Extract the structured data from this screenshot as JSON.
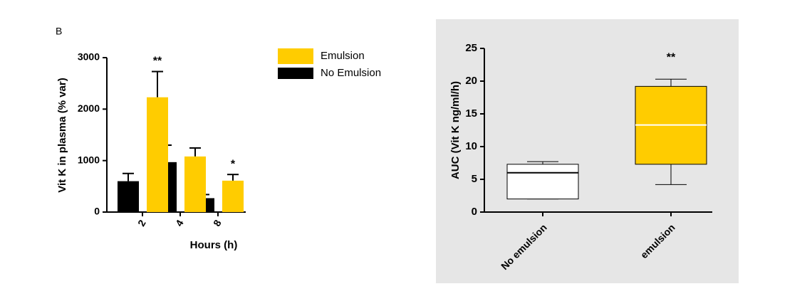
{
  "chart_data": [
    {
      "type": "bar",
      "panel_label": "B",
      "xlabel": "Hours (h)",
      "ylabel": "Vit K in plasma (% var)",
      "categories": [
        "2",
        "4",
        "8"
      ],
      "series": [
        {
          "name": "No Emulsion",
          "color": "#000000",
          "values": [
            600,
            970,
            270
          ],
          "errors": [
            150,
            330,
            70
          ]
        },
        {
          "name": "Emulsion",
          "color": "#ffcc00",
          "values": [
            2230,
            1080,
            610
          ],
          "errors": [
            500,
            165,
            120
          ]
        }
      ],
      "annotations": [
        {
          "text": "**",
          "x": "2"
        },
        {
          "text": "*",
          "x": "8"
        }
      ],
      "ylim": [
        0,
        3000
      ],
      "yticks": [
        0,
        1000,
        2000,
        3000
      ],
      "legend": "upper right"
    },
    {
      "type": "box",
      "ylabel": "AUC (Vit K ng/ml/h)",
      "categories": [
        "No emulsion",
        "emulsion"
      ],
      "boxes": [
        {
          "whisker_low": 2.0,
          "q1": 2.0,
          "median": 6.0,
          "q3": 7.3,
          "whisker_high": 7.7,
          "color": "#ffffff"
        },
        {
          "whisker_low": 4.2,
          "q1": 7.3,
          "median": 13.3,
          "q3": 19.2,
          "whisker_high": 20.3,
          "color": "#ffcc00"
        }
      ],
      "annotations": [
        {
          "text": "**",
          "x": "emulsion"
        }
      ],
      "ylim": [
        0,
        25
      ],
      "yticks": [
        0,
        5,
        10,
        15,
        20,
        25
      ],
      "background": "#e6e6e6"
    }
  ]
}
